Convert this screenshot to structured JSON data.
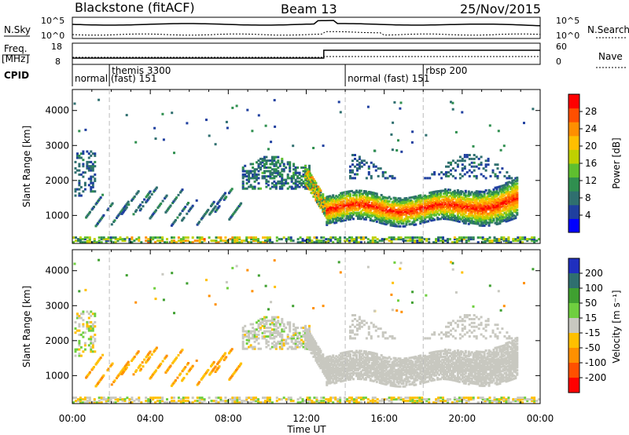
{
  "header": {
    "radar": "Blackstone (fitACF)",
    "beam": "Beam 13",
    "date": "25/Nov/2015"
  },
  "labels": {
    "nsky": "N.Sky",
    "nsearch": "N.Search",
    "freq": "Freq.",
    "mhz": "[MHz]",
    "nave": "Nave",
    "cpid": "CPID",
    "xlabel": "Time UT"
  },
  "noise_panel": {
    "left_ticks": [
      "10^5",
      "10^0"
    ],
    "right_ticks": [
      "10^5",
      "10^0"
    ]
  },
  "freq_panel": {
    "left_ticks": [
      "18",
      "8"
    ],
    "right_ticks": [
      "60",
      "0"
    ]
  },
  "cpid_entries": [
    {
      "hour": 0.0,
      "label": "normal (fast) 151"
    },
    {
      "hour": 1.9,
      "label": "themis 3300"
    },
    {
      "hour": 14.0,
      "label": "normal (fast) 151"
    },
    {
      "hour": 18.0,
      "label": "rbsp 200"
    }
  ],
  "mode_changes_hours": [
    1.9,
    14.0,
    18.0
  ],
  "colors": {
    "power": [
      "#0000ff",
      "#1f3f9f",
      "#2f6f6f",
      "#2f8f4f",
      "#5fbf2f",
      "#bfd000",
      "#ffbf00",
      "#ff8f00",
      "#ff4f00",
      "#ff0000"
    ],
    "velocity": [
      "#1f2fbf",
      "#2f6f6f",
      "#3fa030",
      "#6fcf3f",
      "#c8c8c0",
      "#ffc000",
      "#ff9000",
      "#ff5000",
      "#ff0000"
    ],
    "velocity_gray": "#c8c8c0"
  },
  "chart_data": [
    {
      "type": "heatmap",
      "name": "power",
      "xlabel": "",
      "ylabel": "Slant Range [km]",
      "x_ticks": [
        "00:00",
        "04:00",
        "08:00",
        "12:00",
        "16:00",
        "20:00",
        "00:00"
      ],
      "xlim_hours": [
        0,
        24
      ],
      "ylim": [
        200,
        4600
      ],
      "y_ticks": [
        1000,
        2000,
        3000,
        4000
      ],
      "colorbar": {
        "label": "Power [dB]",
        "range": [
          0,
          32
        ],
        "ticks": [
          4,
          8,
          12,
          16,
          20,
          24,
          28
        ]
      },
      "features": [
        {
          "desc": "main echo band",
          "start_hour": 12.0,
          "end_hour": 22.8,
          "range_km": [
            900,
            2200
          ],
          "power_db": [
            8,
            30
          ]
        },
        {
          "desc": "diagonal streaks",
          "start_hour": 0.5,
          "end_hour": 8.5,
          "range_km": [
            700,
            2000
          ],
          "power_db": [
            4,
            12
          ]
        },
        {
          "desc": "high range patch",
          "start_hour": 8.7,
          "end_hour": 12.1,
          "range_km": [
            2000,
            2800
          ],
          "power_db": [
            4,
            14
          ]
        },
        {
          "desc": "near range ground scatter",
          "start_hour": 0.0,
          "end_hour": 24.0,
          "range_km": [
            200,
            450
          ],
          "power_db": [
            4,
            24
          ]
        },
        {
          "desc": "far range patch",
          "start_hour": 14.0,
          "end_hour": 22.5,
          "range_km": [
            2000,
            3200
          ],
          "power_db": [
            4,
            10
          ]
        }
      ]
    },
    {
      "type": "heatmap",
      "name": "velocity",
      "xlabel": "Time UT",
      "ylabel": "Slant Range [km]",
      "x_ticks": [
        "00:00",
        "04:00",
        "08:00",
        "12:00",
        "16:00",
        "20:00",
        "00:00"
      ],
      "xlim_hours": [
        0,
        24
      ],
      "ylim": [
        200,
        4600
      ],
      "y_ticks": [
        1000,
        2000,
        3000,
        4000
      ],
      "colorbar": {
        "label": "Velocity [m s⁻¹]",
        "ticks": [
          200,
          100,
          50,
          15,
          -15,
          -50,
          -100,
          -200
        ]
      },
      "features": [
        {
          "desc": "ground scatter band (|v| < 15)",
          "start_hour": 12.0,
          "end_hour": 22.8,
          "range_km": [
            900,
            2200
          ],
          "velocity": 0
        },
        {
          "desc": "negative velocity streaks",
          "start_hour": 2.0,
          "end_hour": 8.5,
          "range_km": [
            700,
            1500
          ],
          "velocity": -40
        },
        {
          "desc": "near range mixed",
          "start_hour": 0.0,
          "end_hour": 24.0,
          "range_km": [
            200,
            450
          ],
          "velocity": -30
        }
      ]
    }
  ]
}
